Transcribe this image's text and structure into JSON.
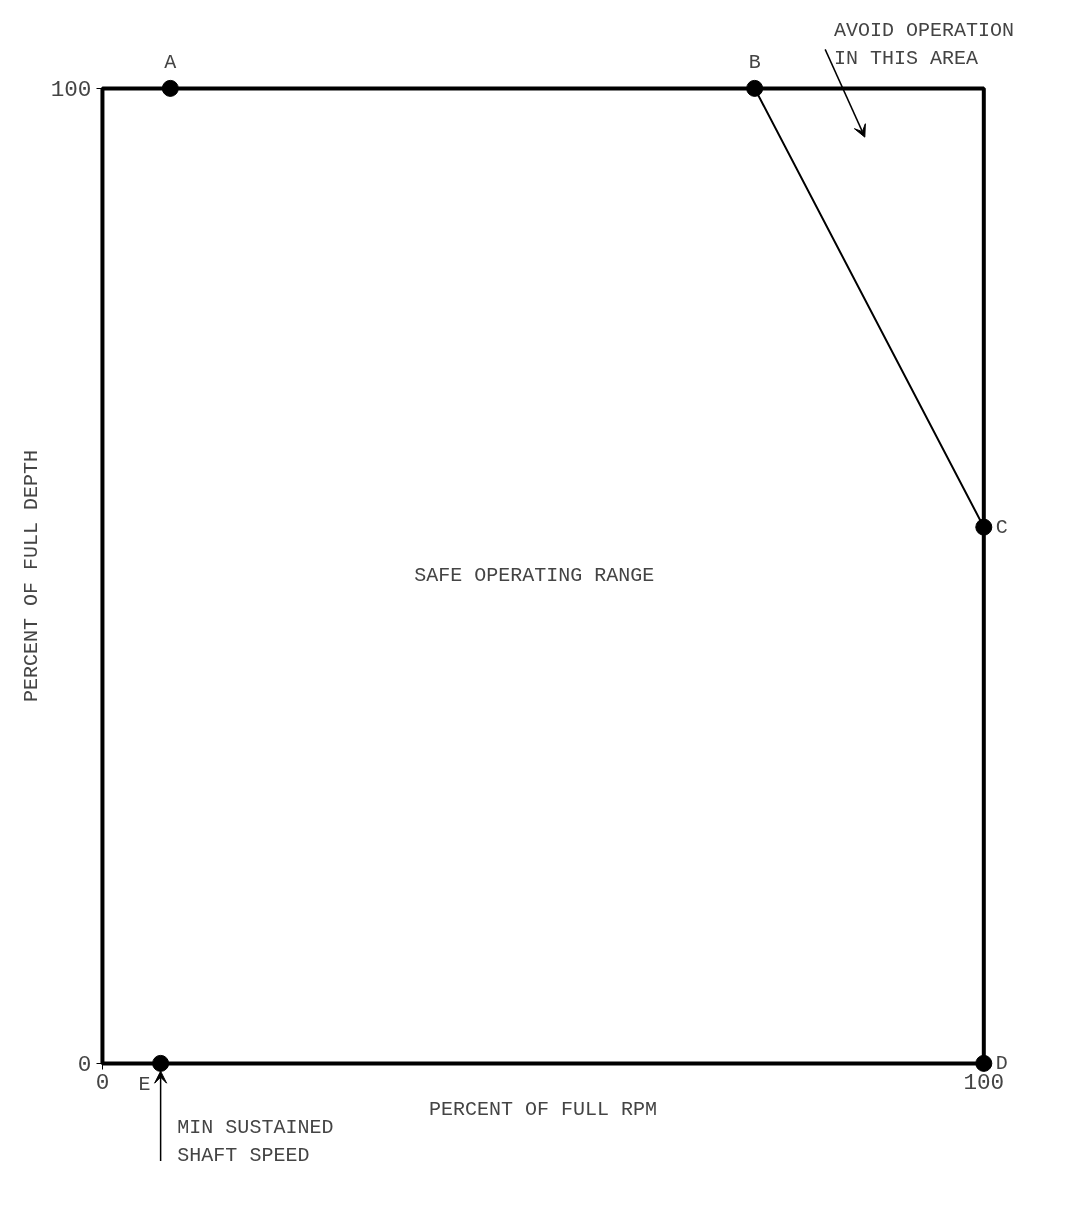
{
  "chart_data": {
    "type": "line",
    "xlabel": "PERCENT OF FULL RPM",
    "ylabel": "PERCENT OF FULL DEPTH",
    "x": [
      7.7,
      74,
      100,
      100,
      6.6
    ],
    "series": [
      {
        "color": "#000000",
        "values": [
          100,
          100,
          55,
          0,
          0
        ]
      }
    ],
    "xlim": [
      0,
      100
    ],
    "ylim": [
      0,
      100
    ],
    "xticks": [
      0,
      100
    ],
    "yticks": [
      0,
      100
    ],
    "marker": "circle",
    "line_style": "solid",
    "annotations": [
      {
        "text": "A",
        "x": 7.7,
        "y": 100
      },
      {
        "text": "B",
        "x": 74,
        "y": 100
      },
      {
        "text": "C",
        "x": 100,
        "y": 55
      },
      {
        "text": "D",
        "x": 100,
        "y": 0
      },
      {
        "text": "E",
        "x": 6.6,
        "y": 0
      },
      "SAFE OPERATING RANGE",
      "AVOID OPERATION\nIN THIS AREA",
      "MIN SUSTAINED\nSHAFT SPEED"
    ]
  }
}
